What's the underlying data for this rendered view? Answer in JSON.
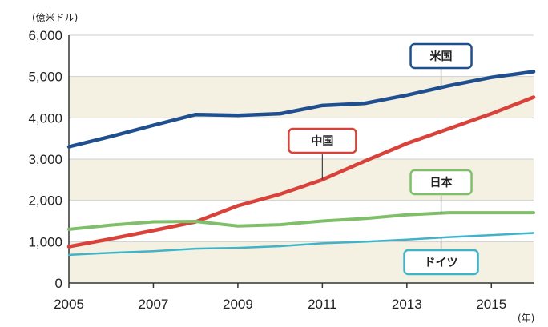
{
  "chart_data": {
    "type": "line",
    "ylabel": "(億米ドル)",
    "xlabel": "(年)",
    "ylim": [
      0,
      6000
    ],
    "xlim": [
      2005,
      2016
    ],
    "y_ticks": [
      "0",
      "1,000",
      "2,000",
      "3,000",
      "4,000",
      "5,000",
      "6,000"
    ],
    "x_ticks": [
      "2005",
      "2007",
      "2009",
      "2011",
      "2013",
      "2015"
    ],
    "grid": "horizontal",
    "legend": "inline-labels",
    "series": [
      {
        "name": "米国",
        "color": "#1f4f8f",
        "x": [
          2005,
          2006,
          2007,
          2008,
          2009,
          2010,
          2011,
          2012,
          2013,
          2014,
          2015,
          2016
        ],
        "values": [
          3300,
          3550,
          3820,
          4080,
          4060,
          4100,
          4300,
          4350,
          4550,
          4780,
          4980,
          5120
        ]
      },
      {
        "name": "中国",
        "color": "#d9423a",
        "x": [
          2005,
          2006,
          2007,
          2008,
          2009,
          2010,
          2011,
          2012,
          2013,
          2014,
          2015,
          2016
        ],
        "values": [
          880,
          1070,
          1270,
          1480,
          1870,
          2150,
          2500,
          2950,
          3380,
          3740,
          4100,
          4500
        ]
      },
      {
        "name": "日本",
        "color": "#7fbf6a",
        "x": [
          2005,
          2006,
          2007,
          2008,
          2009,
          2010,
          2011,
          2012,
          2013,
          2014,
          2015,
          2016
        ],
        "values": [
          1300,
          1400,
          1480,
          1490,
          1380,
          1410,
          1500,
          1560,
          1650,
          1700,
          1700,
          1700
        ]
      },
      {
        "name": "ドイツ",
        "color": "#3fb3c8",
        "x": [
          2005,
          2006,
          2007,
          2008,
          2009,
          2010,
          2011,
          2012,
          2013,
          2014,
          2015,
          2016
        ],
        "values": [
          680,
          730,
          770,
          830,
          850,
          890,
          960,
          1000,
          1050,
          1110,
          1160,
          1210
        ]
      }
    ]
  }
}
